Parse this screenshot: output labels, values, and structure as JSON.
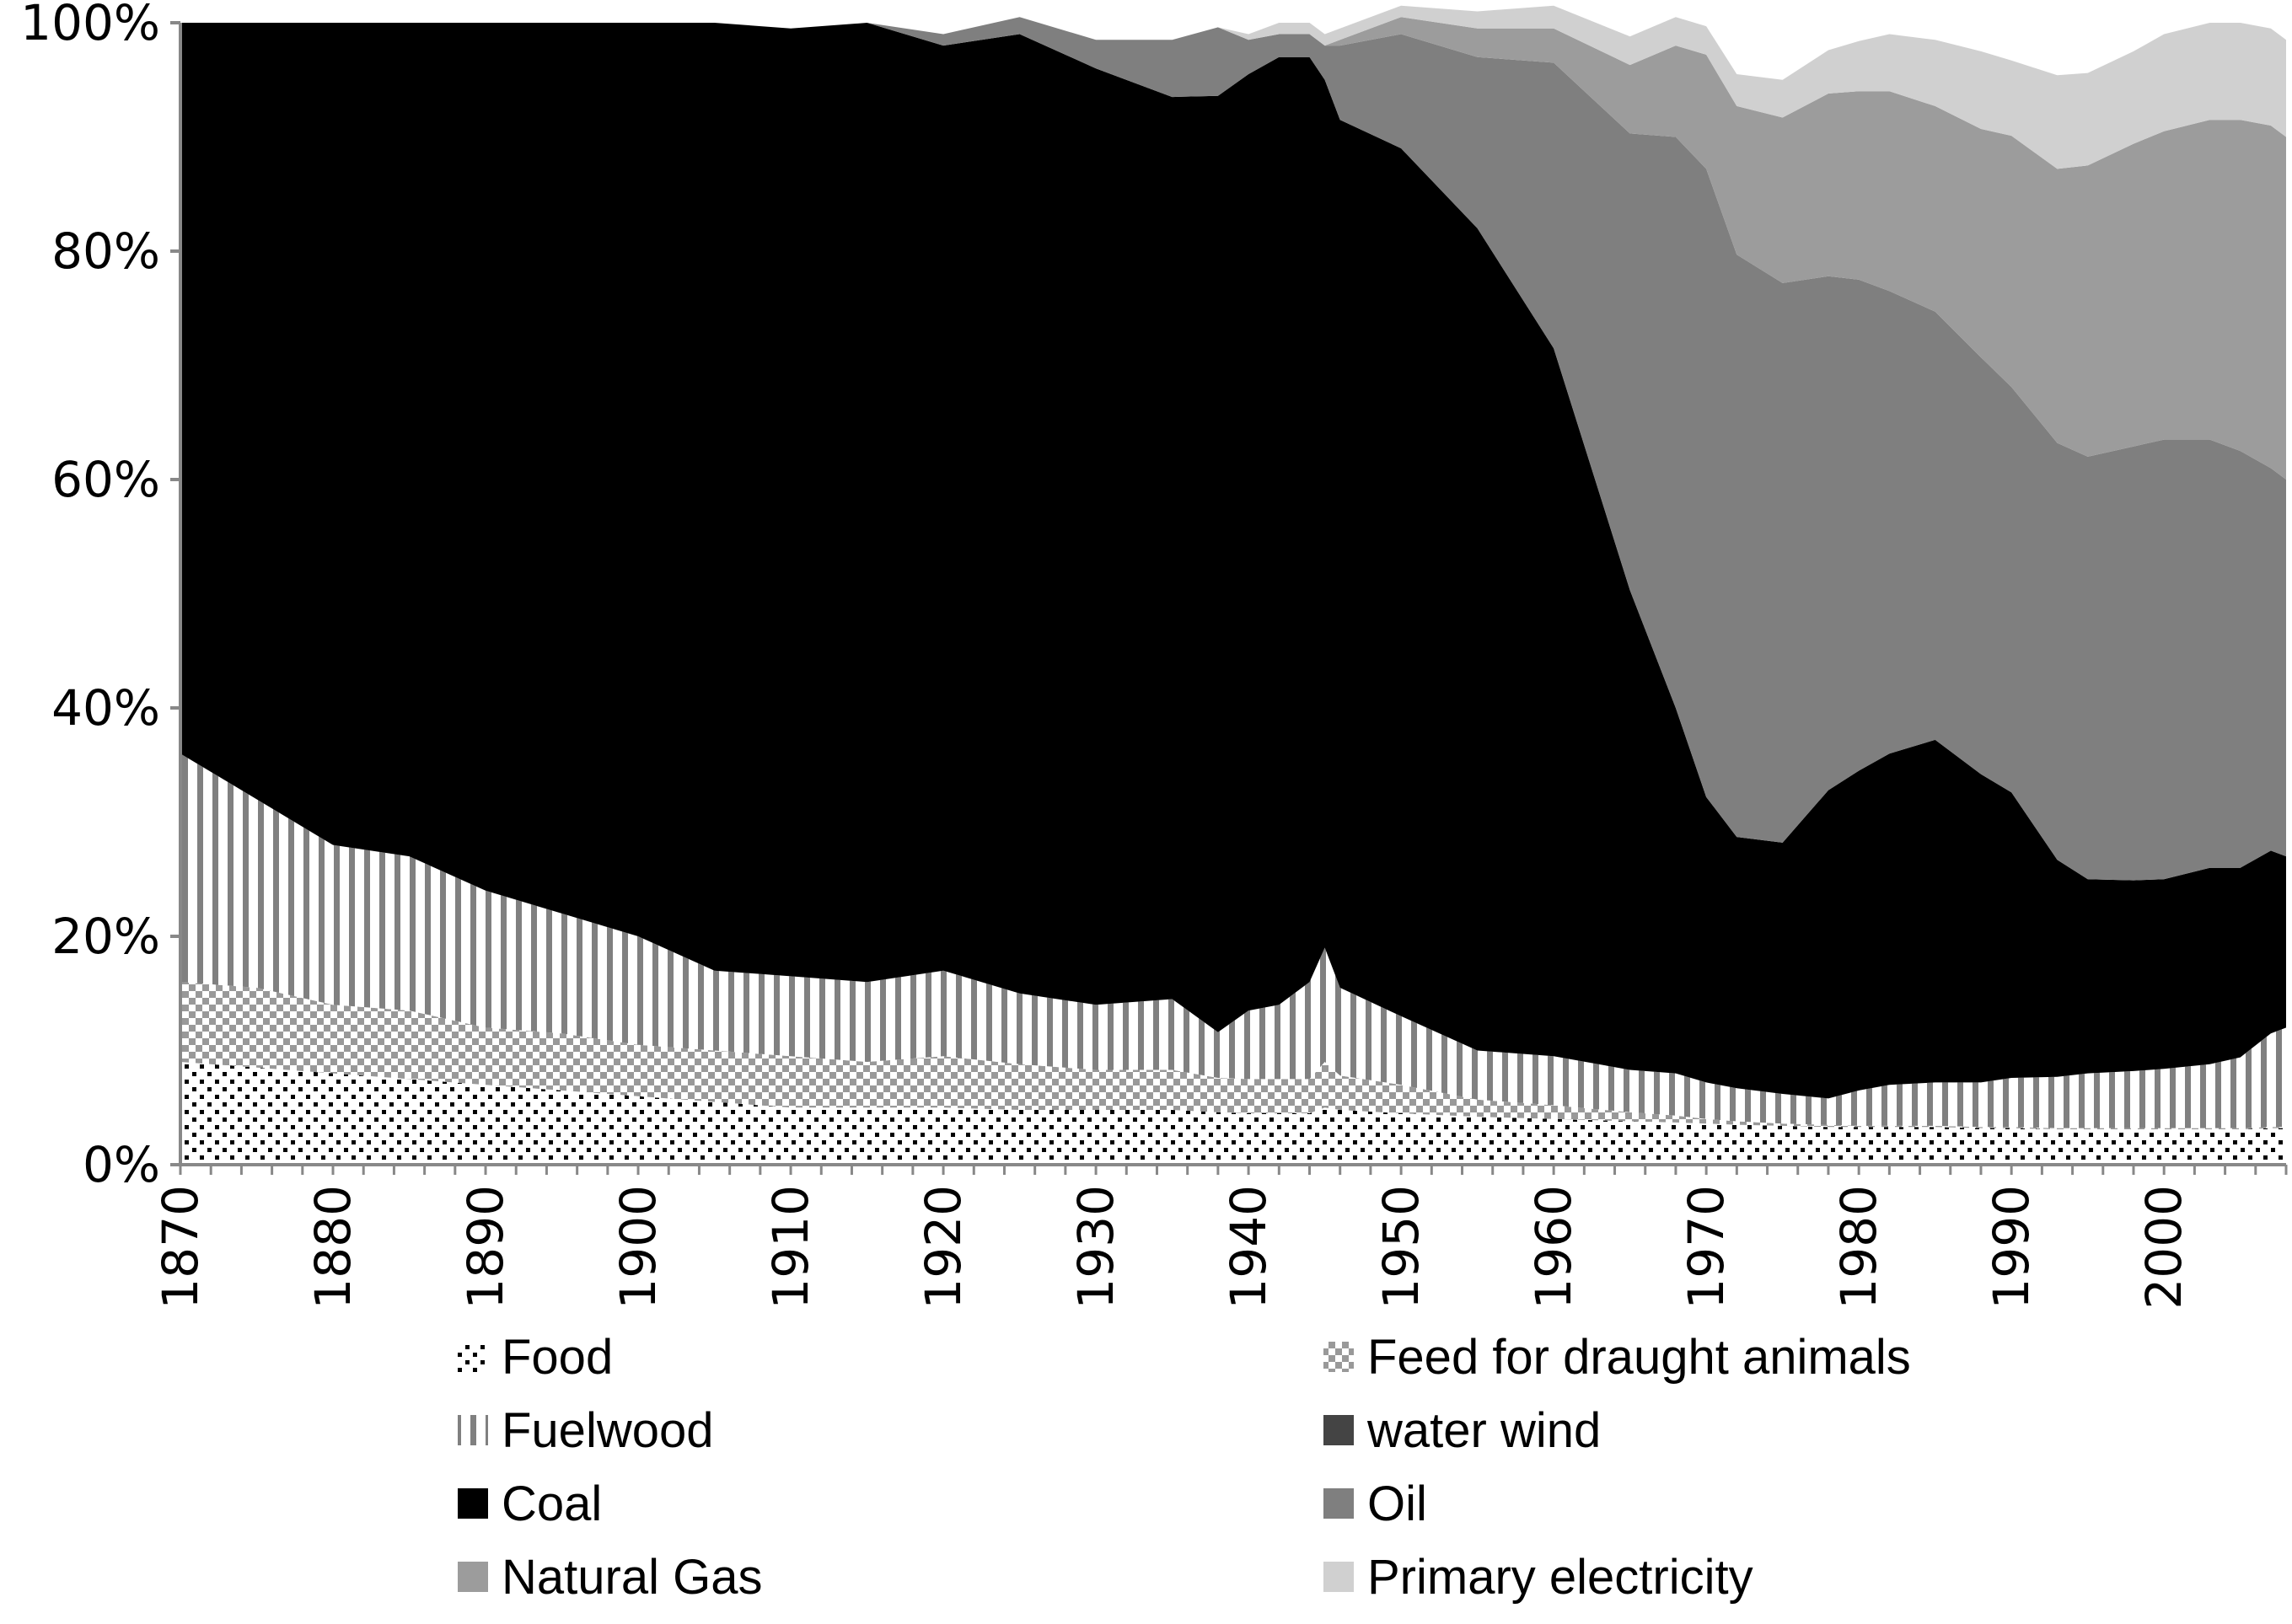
{
  "chart_data": {
    "type": "area",
    "stacked": true,
    "percent": true,
    "title": "",
    "xlabel": "",
    "ylabel": "",
    "xlim": [
      1870,
      2008
    ],
    "ylim": [
      0,
      100
    ],
    "y_ticks": [
      "0%",
      "20%",
      "40%",
      "60%",
      "80%",
      "100%"
    ],
    "y_tick_values": [
      0,
      20,
      40,
      60,
      80,
      100
    ],
    "x_ticks": [
      "1870",
      "1880",
      "1890",
      "1900",
      "1910",
      "1920",
      "1930",
      "1940",
      "1950",
      "1960",
      "1970",
      "1980",
      "1990",
      "2000"
    ],
    "x_tick_values": [
      1870,
      1880,
      1890,
      1900,
      1910,
      1920,
      1930,
      1940,
      1950,
      1960,
      1970,
      1980,
      1990,
      2000
    ],
    "x": [
      1870,
      1875,
      1880,
      1885,
      1890,
      1895,
      1900,
      1905,
      1910,
      1915,
      1920,
      1925,
      1930,
      1935,
      1938,
      1940,
      1942,
      1944,
      1945,
      1946,
      1950,
      1955,
      1960,
      1965,
      1968,
      1970,
      1972,
      1975,
      1978,
      1980,
      1982,
      1985,
      1988,
      1990,
      1993,
      1995,
      1998,
      2000,
      2003,
      2005,
      2007,
      2008
    ],
    "series": [
      {
        "name": "Food",
        "color": "#ffffff",
        "pattern": "dots",
        "values": [
          9,
          8.5,
          8,
          7.5,
          7,
          6.5,
          6,
          5.5,
          5,
          5,
          5,
          4.8,
          4.8,
          4.8,
          4.6,
          4.5,
          4.5,
          4.5,
          5,
          4.8,
          4.5,
          4.2,
          4,
          3.8,
          3.7,
          3.6,
          3.5,
          3.4,
          3.3,
          3.3,
          3.3,
          3.3,
          3.2,
          3.2,
          3.1,
          3.1,
          3.1,
          3.1,
          3.1,
          3.1,
          3.2,
          3.2
        ]
      },
      {
        "name": "Feed for draught animals",
        "color": "#aaaaaa",
        "pattern": "checker",
        "values": [
          7,
          7,
          6,
          6,
          5,
          5,
          4.5,
          4.5,
          4.5,
          4,
          4.5,
          4,
          3.5,
          3.5,
          3,
          3,
          3,
          3,
          4,
          3,
          2.5,
          1.5,
          1.2,
          0.8,
          0.6,
          0.4,
          0.3,
          0.2,
          0.2,
          0.1,
          0.1,
          0.1,
          0.1,
          0.1,
          0.1,
          0.1,
          0.1,
          0.1,
          0.1,
          0.1,
          0.1,
          0.1
        ]
      },
      {
        "name": "Fuelwood",
        "color": "#ffffff",
        "pattern": "vlines",
        "values": [
          20,
          16.5,
          14,
          13.5,
          12,
          10.5,
          9.5,
          7,
          7,
          7,
          7.5,
          6.2,
          5.7,
          6.2,
          4,
          6,
          6.5,
          8.5,
          10,
          7.7,
          6,
          4.3,
          4.3,
          3.7,
          3.7,
          3.2,
          2.9,
          2.6,
          2.3,
          3.1,
          3.6,
          3.8,
          3.9,
          4.3,
          4.5,
          4.8,
          5,
          5.2,
          5.6,
          6.2,
          8.2,
          8.7
        ]
      },
      {
        "name": "water wind",
        "color": "#444444",
        "pattern": "solid",
        "values": [
          0,
          0,
          0,
          0,
          0,
          0,
          0,
          0,
          0,
          0,
          0,
          0,
          0,
          0,
          0,
          0,
          0,
          0,
          0,
          0,
          0,
          0,
          0,
          0,
          0,
          0,
          0,
          0,
          0,
          0,
          0,
          0,
          0,
          0,
          0,
          0,
          0,
          0,
          0,
          0,
          0,
          0
        ]
      },
      {
        "name": "Coal",
        "color": "#000000",
        "pattern": "solid",
        "values": [
          64,
          68,
          72,
          73,
          76,
          78,
          80,
          83,
          83,
          84,
          81,
          84,
          82,
          79,
          82,
          82,
          83,
          81,
          76,
          76,
          76,
          72,
          62,
          42,
          32,
          25,
          22,
          22,
          27,
          28,
          29,
          30,
          27,
          25,
          19,
          17,
          16.7,
          16.6,
          17.2,
          16.6,
          16,
          15
        ]
      },
      {
        "name": "Oil",
        "color": "#7f7f7f",
        "pattern": "solid",
        "values": [
          0,
          0,
          0,
          0,
          0,
          0,
          0,
          0,
          0,
          0,
          1,
          1.5,
          2.5,
          5,
          6,
          3,
          2,
          2,
          3,
          6.5,
          10,
          15,
          25,
          40,
          50,
          55,
          51,
          49,
          45,
          43,
          40.5,
          37.5,
          36.5,
          35.5,
          36.5,
          37,
          38,
          38.5,
          37.5,
          36.5,
          33.5,
          33
        ]
      },
      {
        "name": "Natural Gas",
        "color": "#9c9c9c",
        "pattern": "solid",
        "values": [
          0,
          0,
          0,
          0,
          0,
          0,
          0,
          0,
          0,
          0,
          0,
          0,
          0,
          0,
          0,
          0,
          0,
          0,
          0,
          0.5,
          1.5,
          2.5,
          3,
          6,
          8,
          10,
          13,
          14.5,
          16,
          16.5,
          17.5,
          18,
          20,
          22,
          24,
          25.5,
          26.5,
          27,
          28,
          29,
          30,
          30
        ]
      },
      {
        "name": "Primary electricity",
        "color": "#d0d0d0",
        "pattern": "solid",
        "values": [
          0,
          0,
          0,
          0,
          0,
          0,
          0,
          0,
          0,
          0,
          0,
          0,
          0,
          0,
          0,
          0.5,
          1,
          1,
          1,
          1,
          1,
          1.5,
          2,
          2.5,
          2.5,
          2.5,
          2.8,
          3.3,
          3.8,
          4.4,
          5,
          5.8,
          6.8,
          6.6,
          8.2,
          8.1,
          8.1,
          8.5,
          8.5,
          8.5,
          8.5,
          8.5
        ]
      }
    ],
    "legend": [
      "Food",
      "Feed for draught animals",
      "Fuelwood",
      " water wind",
      "Coal",
      "Oil",
      "Natural Gas",
      "Primary electricity"
    ],
    "legend_position": "bottom",
    "grid": false
  }
}
